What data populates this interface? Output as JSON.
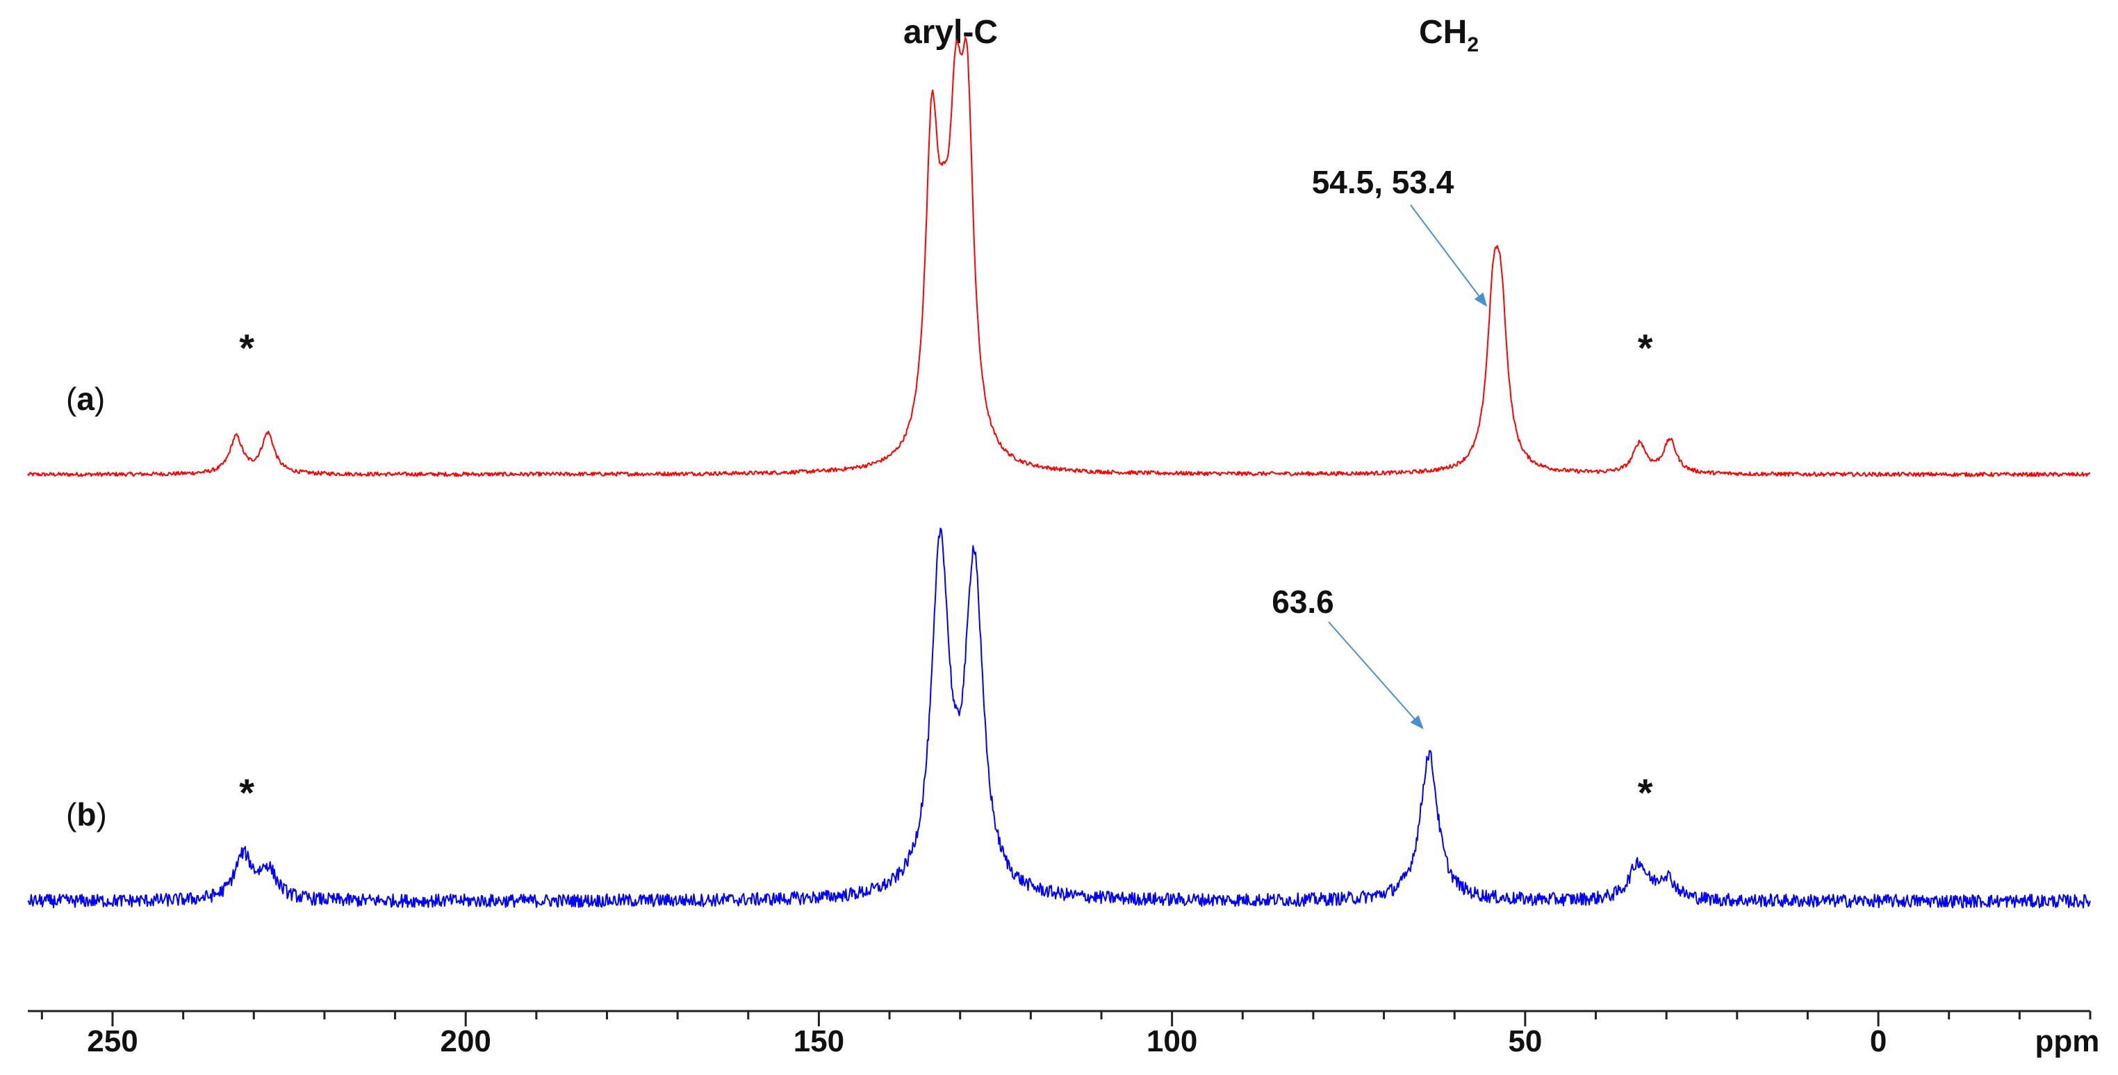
{
  "chart_data": {
    "type": "line",
    "title": "",
    "xlabel": "ppm",
    "ylabel": "",
    "x_reversed": true,
    "xlim": [
      262,
      -30
    ],
    "x_ticks": [
      "250",
      "200",
      "150",
      "100",
      "50",
      "0"
    ],
    "x_tick_values": [
      250,
      200,
      150,
      100,
      50,
      0
    ],
    "grid": false,
    "legend": "none",
    "group_labels": {
      "aryl": "aryl-C",
      "ch2": "CH",
      "ch2_sub": "2"
    },
    "series": [
      {
        "label": "(a)",
        "label_parts": [
          "(",
          "a",
          ")"
        ],
        "color": "#ff0000",
        "noise": 0.006,
        "peaks": [
          {
            "x": 134.0,
            "h": 0.93
          },
          {
            "x": 132.3,
            "h": 0.33
          },
          {
            "x": 130.6,
            "h": 0.8
          },
          {
            "x": 129.0,
            "h": 0.95
          },
          {
            "x": 54.5,
            "h": 0.44
          },
          {
            "x": 53.4,
            "h": 0.41
          },
          {
            "x": 232.5,
            "h": 0.11
          },
          {
            "x": 228.0,
            "h": 0.12
          },
          {
            "x": 33.8,
            "h": 0.09
          },
          {
            "x": 29.5,
            "h": 0.1
          }
        ],
        "annotation": {
          "text": "54.5, 53.4",
          "x": 55.5
        },
        "spinning_sidebands": [
          231.0,
          33.0
        ],
        "sideband_marker": "*"
      },
      {
        "label": "(b)",
        "label_parts": [
          "(",
          "b",
          ")"
        ],
        "color": "#0000ff",
        "noise": 0.018,
        "peaks": [
          {
            "x": 132.8,
            "h": 0.93
          },
          {
            "x": 128.0,
            "h": 0.88
          },
          {
            "x": 63.6,
            "h": 0.4
          },
          {
            "x": 231.5,
            "h": 0.12
          },
          {
            "x": 228.0,
            "h": 0.08
          },
          {
            "x": 34.0,
            "h": 0.1
          },
          {
            "x": 30.0,
            "h": 0.06
          }
        ],
        "annotation": {
          "text": "63.6",
          "x": 64.5
        },
        "spinning_sidebands": [
          231.0,
          33.0
        ],
        "sideband_marker": "*"
      }
    ]
  }
}
